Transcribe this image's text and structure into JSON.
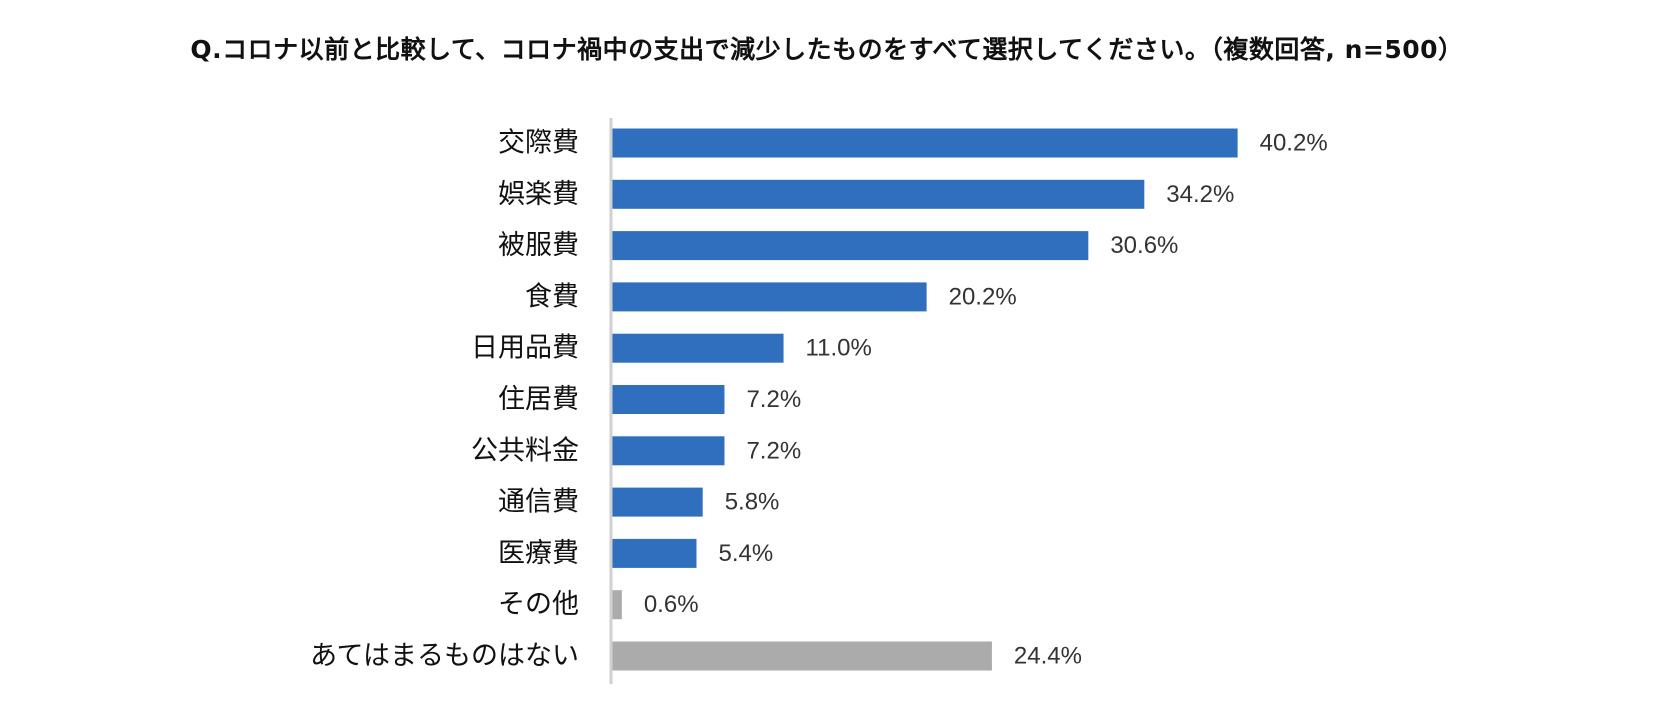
{
  "chart_data": {
    "type": "bar",
    "orientation": "horizontal",
    "title": "Q.コロナ以前と比較して、コロナ禍中の支出で減少したものをすべて選択してください。（複数回答, n=500）",
    "categories": [
      "交際費",
      "娯楽費",
      "被服費",
      "食費",
      "日用品費",
      "住居費",
      "公共料金",
      "通信費",
      "医療費",
      "その他",
      "あてはまるものはない"
    ],
    "values": [
      40.2,
      34.2,
      30.6,
      20.2,
      11.0,
      7.2,
      7.2,
      5.8,
      5.4,
      0.6,
      24.4
    ],
    "value_labels": [
      "40.2%",
      "34.2%",
      "30.6%",
      "20.2%",
      "11.0%",
      "7.2%",
      "7.2%",
      "5.8%",
      "5.4%",
      "0.6%",
      "24.4%"
    ],
    "unit": "%",
    "xlim": [
      0,
      45
    ],
    "xlabel": "",
    "ylabel": "",
    "grid": false,
    "legend": "none",
    "colors": {
      "primary": "#2f6fbd",
      "secondary": "#ababab",
      "axis": "#d0d0d0"
    },
    "bar_colors": [
      "primary",
      "primary",
      "primary",
      "primary",
      "primary",
      "primary",
      "primary",
      "primary",
      "primary",
      "secondary",
      "secondary"
    ]
  }
}
